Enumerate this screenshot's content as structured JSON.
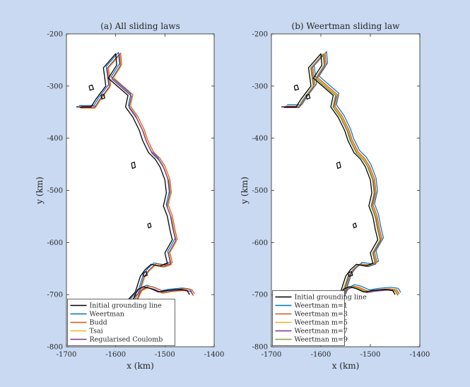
{
  "chart_data": [
    {
      "type": "line",
      "title": "(a) All sliding laws",
      "xlabel": "x (km)",
      "ylabel": "y (km)",
      "xlim": [
        -1700,
        -1400
      ],
      "ylim": [
        -800,
        -200
      ],
      "xticks": [
        -1700,
        -1600,
        -1500,
        -1400
      ],
      "yticks": [
        -200,
        -300,
        -400,
        -500,
        -600,
        -700,
        -800
      ],
      "xtick_labels": [
        "-1700",
        "-1600",
        "-1500",
        "-1400"
      ],
      "ytick_labels": [
        "-200",
        "-300",
        "-400",
        "-500",
        "-600",
        "-700",
        "-800"
      ],
      "legend_position": "bottom-left",
      "grid": false,
      "series": [
        {
          "name": "Initial grounding line",
          "color": "#000000"
        },
        {
          "name": "Weertman",
          "color": "#0072bd"
        },
        {
          "name": "Budd",
          "color": "#d95319"
        },
        {
          "name": "Tsai",
          "color": "#edb120"
        },
        {
          "name": "Regularised Coulomb",
          "color": "#7e2f8e"
        }
      ]
    },
    {
      "type": "line",
      "title": "(b) Weertman sliding law",
      "xlabel": "x (km)",
      "ylabel": "y (km)",
      "xlim": [
        -1700,
        -1400
      ],
      "ylim": [
        -800,
        -200
      ],
      "xticks": [
        -1700,
        -1600,
        -1500,
        -1400
      ],
      "yticks": [
        -200,
        -300,
        -400,
        -500,
        -600,
        -700,
        -800
      ],
      "xtick_labels": [
        "-1700",
        "-1600",
        "-1500",
        "-1400"
      ],
      "ytick_labels": [
        "-200",
        "-300",
        "-400",
        "-500",
        "-600",
        "-700",
        "-800"
      ],
      "legend_position": "bottom-left",
      "grid": false,
      "series": [
        {
          "name": "Initial grounding line",
          "color": "#000000"
        },
        {
          "name": "Weertman m=1",
          "color": "#0072bd"
        },
        {
          "name": "Weertman m=3",
          "color": "#d95319"
        },
        {
          "name": "Weertman m=5",
          "color": "#edb120"
        },
        {
          "name": "Weertman m=7",
          "color": "#7e2f8e"
        },
        {
          "name": "Weertman m=9",
          "color": "#77ac30"
        }
      ]
    }
  ],
  "coastline": {
    "x": [
      -1680,
      -1650,
      -1640,
      -1620,
      -1625,
      -1600,
      -1598,
      -1615,
      -1575,
      -1580,
      -1565,
      -1552,
      -1545,
      -1533,
      -1520,
      -1510,
      -1500,
      -1497,
      -1503,
      -1495,
      -1490,
      -1485,
      -1500,
      -1495,
      -1510,
      -1528,
      -1540,
      -1550,
      -1555,
      -1560,
      -1580,
      -1565,
      -1555,
      -1543,
      -1530,
      -1513,
      -1495,
      -1470,
      -1455,
      -1450
    ],
    "y": [
      -340,
      -340,
      -325,
      -300,
      -265,
      -238,
      -260,
      -285,
      -318,
      -340,
      -360,
      -385,
      -405,
      -428,
      -440,
      -455,
      -480,
      -505,
      -530,
      -550,
      -575,
      -595,
      -620,
      -640,
      -645,
      -642,
      -652,
      -665,
      -680,
      -695,
      -715,
      -710,
      -690,
      -685,
      -688,
      -695,
      -692,
      -690,
      -692,
      -700
    ]
  },
  "islands": [
    {
      "x": [
        -1654,
        -1648,
        -1645,
        -1652,
        -1654
      ],
      "y": [
        -300,
        -298,
        -306,
        -308,
        -300
      ]
    },
    {
      "x": [
        -1630,
        -1624,
        -1622,
        -1628,
        -1630
      ],
      "y": [
        -318,
        -316,
        -323,
        -325,
        -318
      ]
    },
    {
      "x": [
        -1568,
        -1562,
        -1560,
        -1566,
        -1568
      ],
      "y": [
        -448,
        -446,
        -456,
        -458,
        -448
      ]
    },
    {
      "x": [
        -1535,
        -1530,
        -1528,
        -1533,
        -1535
      ],
      "y": [
        -565,
        -563,
        -570,
        -572,
        -565
      ]
    },
    {
      "x": [
        -1545,
        -1538,
        -1536,
        -1543,
        -1545
      ],
      "y": [
        -658,
        -656,
        -663,
        -665,
        -658
      ]
    }
  ],
  "outline_offsets": {
    "a": [
      {
        "dx": 4,
        "dy": -2
      },
      {
        "dx": 7,
        "dy": -1
      },
      {
        "dx": 6,
        "dy": 2
      },
      {
        "dx": 5,
        "dy": 1
      }
    ],
    "b": [
      {
        "dx": 8,
        "dy": -3
      },
      {
        "dx": 6,
        "dy": -1
      },
      {
        "dx": 5,
        "dy": 0
      },
      {
        "dx": 4,
        "dy": 1
      },
      {
        "dx": 3,
        "dy": 0
      }
    ]
  }
}
